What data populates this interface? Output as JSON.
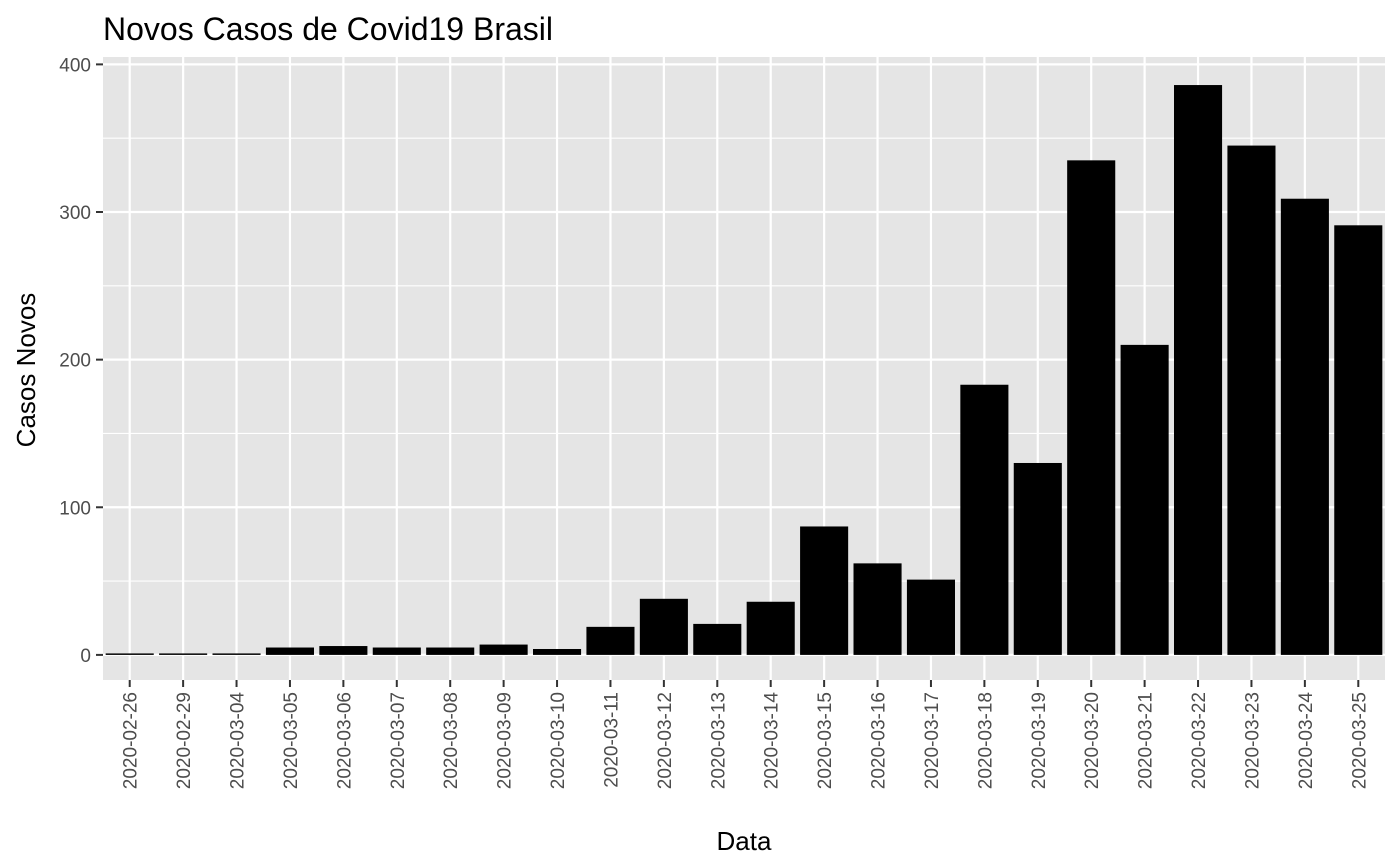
{
  "chart_data": {
    "type": "bar",
    "title": "Novos Casos de Covid19 Brasil",
    "xlabel": "Data",
    "ylabel": "Casos Novos",
    "categories": [
      "2020-02-26",
      "2020-02-29",
      "2020-03-04",
      "2020-03-05",
      "2020-03-06",
      "2020-03-07",
      "2020-03-08",
      "2020-03-09",
      "2020-03-10",
      "2020-03-11",
      "2020-03-12",
      "2020-03-13",
      "2020-03-14",
      "2020-03-15",
      "2020-03-16",
      "2020-03-17",
      "2020-03-18",
      "2020-03-19",
      "2020-03-20",
      "2020-03-21",
      "2020-03-22",
      "2020-03-23",
      "2020-03-24",
      "2020-03-25"
    ],
    "values": [
      1,
      1,
      1,
      5,
      6,
      5,
      5,
      7,
      4,
      19,
      38,
      21,
      36,
      87,
      62,
      51,
      183,
      130,
      335,
      210,
      386,
      345,
      309,
      291
    ],
    "ylim": [
      -17,
      405
    ],
    "yticks": [
      0,
      100,
      200,
      300,
      400
    ],
    "ytick_labels": [
      "0",
      "100",
      "200",
      "300",
      "400"
    ],
    "grid": true,
    "colors": {
      "panel": "#e5e5e5",
      "grid": "#ffffff",
      "bar": "#000000",
      "tick": "#333333",
      "tick_label": "#4d4d4d"
    }
  }
}
